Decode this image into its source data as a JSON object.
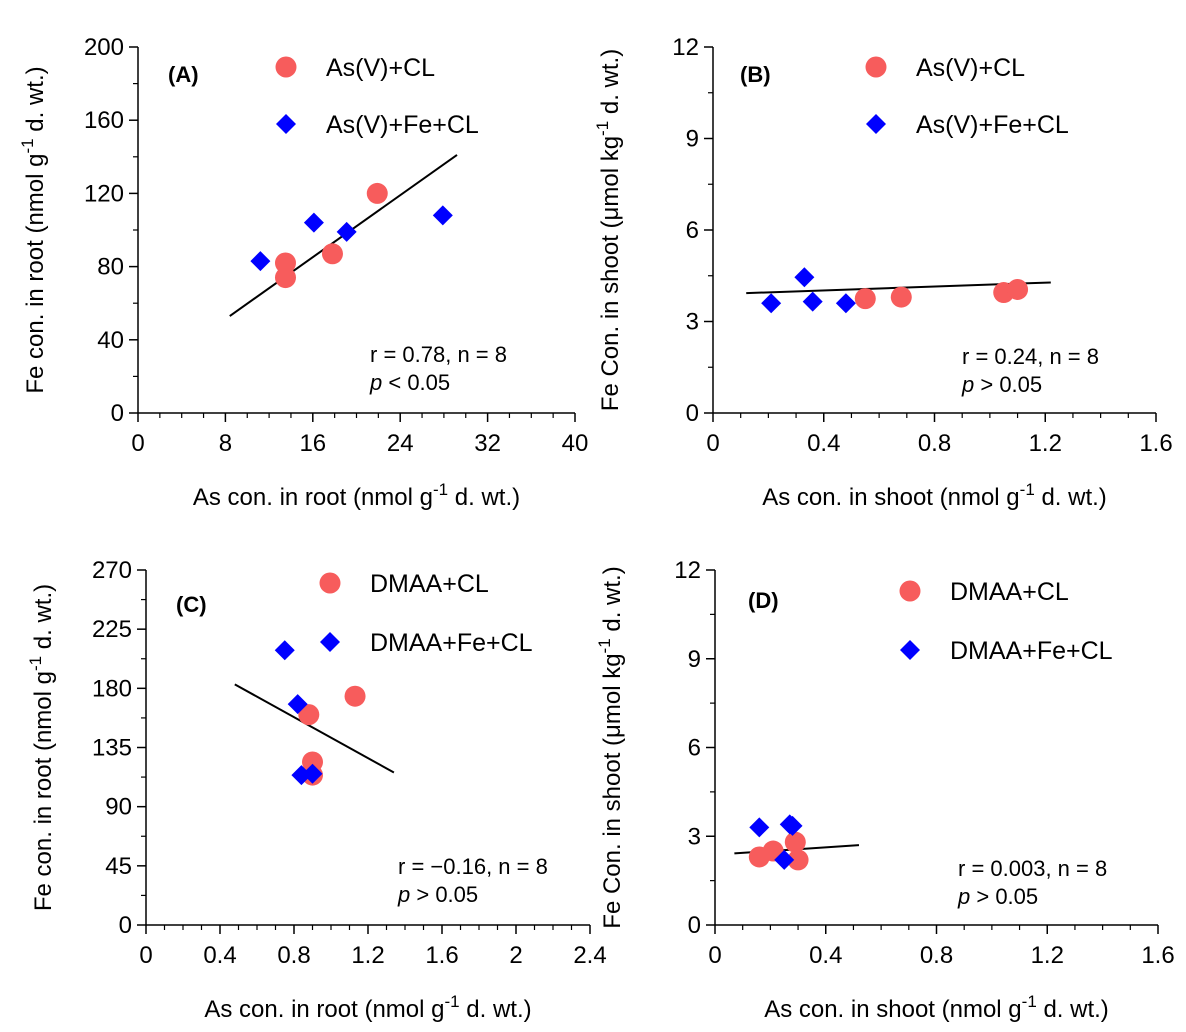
{
  "colors": {
    "circle": "#f75c5c",
    "diamond": "#0000ff",
    "axis": "#000000",
    "fit": "#000000"
  },
  "chart_data": [
    {
      "type": "scatter",
      "panel_label": "(A)",
      "xlabel": "As con. in root (nmol g",
      "xlabel_sup": "-1",
      "xlabel_tail": " d. wt.)",
      "ylabel": "Fe con. in root (nmol g",
      "ylabel_sup": "-1",
      "ylabel_tail": " d. wt.)",
      "xlim": [
        0,
        40
      ],
      "ylim": [
        0,
        200
      ],
      "xticks": [
        0,
        8,
        16,
        24,
        32,
        40
      ],
      "xtick_labels": [
        "0",
        "8",
        "16",
        "24",
        "32",
        "40"
      ],
      "yticks": [
        0,
        40,
        80,
        120,
        160,
        200
      ],
      "ytick_labels": [
        "0",
        "40",
        "80",
        "120",
        "160",
        "200"
      ],
      "legend_placement": "top-right",
      "series": [
        {
          "name": "As(V)+CL",
          "marker": "circle",
          "x": [
            13.5,
            13.5,
            17.8,
            21.9
          ],
          "y": [
            82,
            74,
            87,
            120
          ]
        },
        {
          "name": "As(V)+Fe+CL",
          "marker": "diamond",
          "x": [
            11.2,
            16.1,
            19.1,
            27.9
          ],
          "y": [
            83,
            104,
            99,
            108
          ]
        }
      ],
      "fit_line": {
        "x": [
          8.4,
          29.2
        ],
        "y": [
          53,
          141
        ]
      },
      "stats": [
        "r = 0.78, n = 8",
        "p",
        " < 0.05"
      ]
    },
    {
      "type": "scatter",
      "panel_label": "(B)",
      "xlabel": "As con. in shoot (nmol g",
      "xlabel_sup": "-1",
      "xlabel_tail": " d. wt.)",
      "ylabel": "Fe Con. in shoot (μmol kg",
      "ylabel_sup": "-1",
      "ylabel_tail": " d. wt.)",
      "xlim": [
        0,
        1.6
      ],
      "ylim": [
        0,
        12
      ],
      "xticks": [
        0,
        0.4,
        0.8,
        1.2,
        1.6
      ],
      "xtick_labels": [
        "0",
        "0.4",
        "0.8",
        "1.2",
        "1.6"
      ],
      "yticks": [
        0,
        3,
        6,
        9,
        12
      ],
      "ytick_labels": [
        "0",
        "3",
        "6",
        "9",
        "12"
      ],
      "legend_placement": "top-right",
      "series": [
        {
          "name": "As(V)+CL",
          "marker": "circle",
          "x": [
            0.55,
            0.68,
            1.05,
            1.1
          ],
          "y": [
            3.75,
            3.8,
            3.95,
            4.05
          ]
        },
        {
          "name": "As(V)+Fe+CL",
          "marker": "diamond",
          "x": [
            0.21,
            0.33,
            0.36,
            0.48
          ],
          "y": [
            3.6,
            4.45,
            3.65,
            3.6
          ]
        }
      ],
      "fit_line": {
        "x": [
          0.12,
          1.22
        ],
        "y": [
          3.93,
          4.28
        ]
      },
      "stats": [
        "r = 0.24, n = 8",
        "p",
        " > 0.05"
      ]
    },
    {
      "type": "scatter",
      "panel_label": "(C)",
      "xlabel": "As con. in root (nmol g",
      "xlabel_sup": "-1",
      "xlabel_tail": " d. wt.)",
      "ylabel": "Fe con. in root (nmol g",
      "ylabel_sup": "-1",
      "ylabel_tail": " d. wt.)",
      "xlim": [
        0,
        2.4
      ],
      "ylim": [
        0,
        270
      ],
      "xticks": [
        0,
        0.4,
        0.8,
        1.2,
        1.6,
        2,
        2.4
      ],
      "xtick_labels": [
        "0",
        "0.4",
        "0.8",
        "1.2",
        "1.6",
        "2",
        "2.4"
      ],
      "yticks": [
        0,
        45,
        90,
        135,
        180,
        225,
        270
      ],
      "ytick_labels": [
        "0",
        "45",
        "90",
        "135",
        "180",
        "225",
        "270"
      ],
      "legend_placement": "top-right",
      "series": [
        {
          "name": "DMAA+CL",
          "marker": "circle",
          "x": [
            0.88,
            0.9,
            0.9,
            1.13
          ],
          "y": [
            160,
            124,
            114,
            174
          ]
        },
        {
          "name": "DMAA+Fe+CL",
          "marker": "diamond",
          "x": [
            0.75,
            0.82,
            0.84,
            0.9
          ],
          "y": [
            209,
            168,
            114,
            115
          ]
        }
      ],
      "fit_line": {
        "x": [
          0.48,
          1.34
        ],
        "y": [
          183,
          116
        ]
      },
      "stats": [
        "r = −0.16, n = 8",
        "p",
        " > 0.05"
      ]
    },
    {
      "type": "scatter",
      "panel_label": "(D)",
      "xlabel": "As con. in shoot (nmol g",
      "xlabel_sup": "-1",
      "xlabel_tail": " d. wt.)",
      "ylabel": "Fe Con. in shoot (μmol kg",
      "ylabel_sup": "-1",
      "ylabel_tail": " d. wt.)",
      "xlim": [
        0,
        1.6
      ],
      "ylim": [
        0,
        12
      ],
      "xticks": [
        0,
        0.4,
        0.8,
        1.2,
        1.6
      ],
      "xtick_labels": [
        "0",
        "0.4",
        "0.8",
        "1.2",
        "1.6"
      ],
      "yticks": [
        0,
        3,
        6,
        9,
        12
      ],
      "ytick_labels": [
        "0",
        "3",
        "6",
        "9",
        "12"
      ],
      "legend_placement": "top-right",
      "series": [
        {
          "name": "DMAA+CL",
          "marker": "circle",
          "x": [
            0.16,
            0.21,
            0.29,
            0.3
          ],
          "y": [
            2.3,
            2.5,
            2.8,
            2.2
          ]
        },
        {
          "name": "DMAA+Fe+CL",
          "marker": "diamond",
          "x": [
            0.16,
            0.25,
            0.27,
            0.28
          ],
          "y": [
            3.3,
            2.2,
            3.4,
            3.35
          ]
        }
      ],
      "fit_line": {
        "x": [
          0.07,
          0.52
        ],
        "y": [
          2.42,
          2.7
        ]
      },
      "stats": [
        "r = 0.003, n = 8",
        "p",
        " > 0.05"
      ]
    }
  ]
}
